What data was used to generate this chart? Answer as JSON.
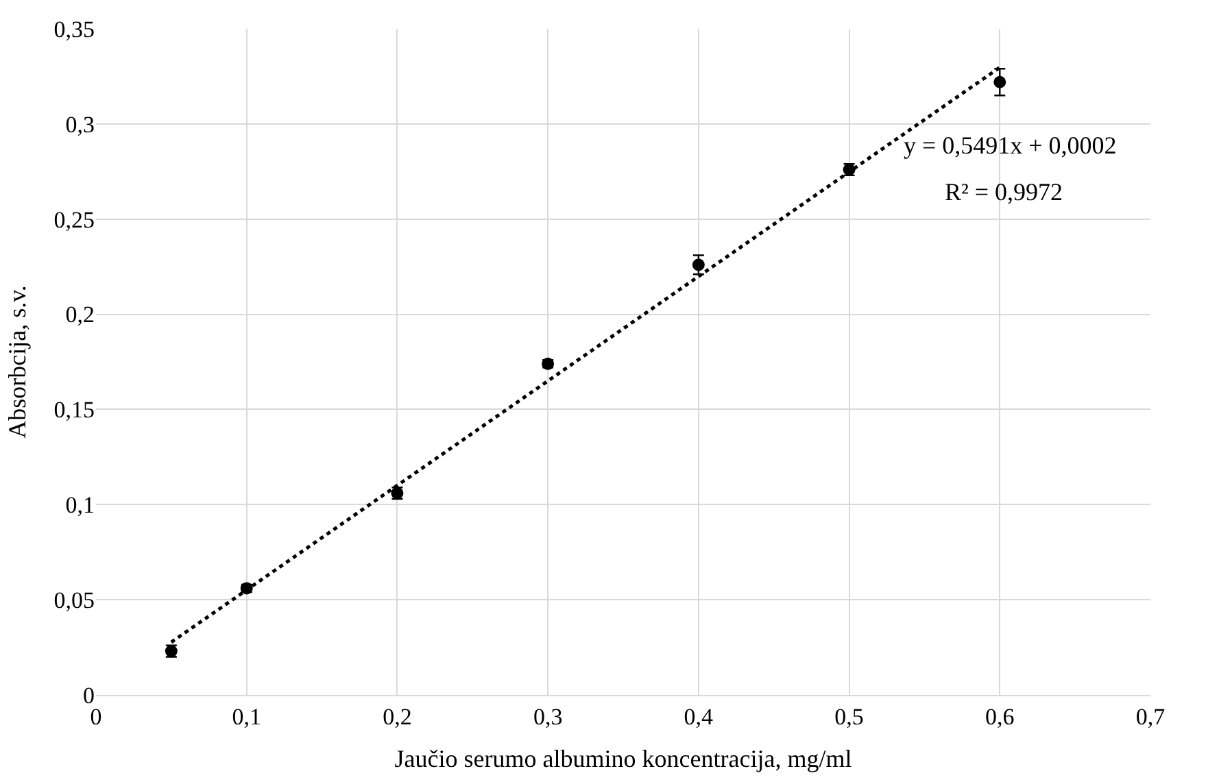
{
  "chart_data": {
    "type": "scatter",
    "xlabel": "Jaučio serumo albumino koncentracija, mg/ml",
    "ylabel": "Absorbcija, s.v.",
    "x": [
      0.05,
      0.1,
      0.2,
      0.3,
      0.4,
      0.5,
      0.6
    ],
    "series": [
      {
        "color": "#000000",
        "values": [
          0.023,
          0.056,
          0.106,
          0.174,
          0.226,
          0.276,
          0.322
        ],
        "errors": [
          0.003,
          0.002,
          0.003,
          0.002,
          0.005,
          0.003,
          0.007
        ]
      },
      {
        "type": "line",
        "color": "#000000",
        "marker": "none",
        "line_style": "dotted",
        "x": [
          0.05,
          0.6
        ],
        "values": [
          0.0277,
          0.3297
        ]
      }
    ],
    "annotations": [
      "y = 0,5491x + 0,0002",
      "R² = 0,9972"
    ],
    "xlim": [
      0,
      0.7
    ],
    "ylim": [
      0,
      0.35
    ],
    "xticks": [
      0,
      {
        "value": 0.1,
        "label": "0,1"
      },
      {
        "value": 0.2,
        "label": "0,2"
      },
      {
        "value": 0.3,
        "label": "0,3"
      },
      {
        "value": 0.4,
        "label": "0,4"
      },
      {
        "value": 0.5,
        "label": "0,5"
      },
      {
        "value": 0.6,
        "label": "0,6"
      },
      {
        "value": 0.7,
        "label": "0,7"
      }
    ],
    "yticks": [
      0,
      {
        "value": 0.05,
        "label": "0,05"
      },
      {
        "value": 0.1,
        "label": "0,1"
      },
      {
        "value": 0.15,
        "label": "0,15"
      },
      {
        "value": 0.2,
        "label": "0,2"
      },
      {
        "value": 0.25,
        "label": "0,25"
      },
      {
        "value": 0.3,
        "label": "0,3"
      },
      {
        "value": 0.35,
        "label": "0,35"
      }
    ],
    "grid": true
  }
}
